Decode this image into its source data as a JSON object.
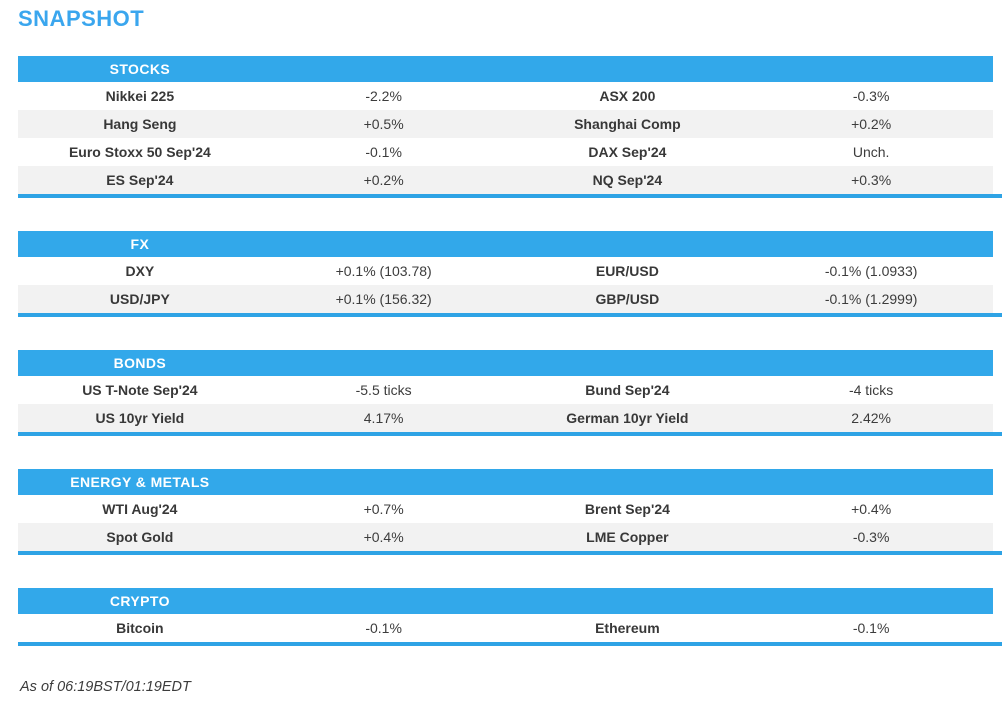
{
  "page": {
    "title": "SNAPSHOT",
    "footer": "As of 06:19BST/01:19EDT"
  },
  "colors": {
    "accent_blue": "#32a8ea",
    "section_border_blue": "#2ea3e5",
    "title_blue": "#3aa6ee",
    "row_alt_gray": "#f2f2f2",
    "text": "#3c3c3c",
    "header_text": "#ffffff"
  },
  "sections": [
    {
      "header": "STOCKS",
      "rows": [
        {
          "instrument_left": "Nikkei 225",
          "change_left": "-2.2%",
          "instrument_right": "ASX 200",
          "change_right": "-0.3%"
        },
        {
          "instrument_left": "Hang Seng",
          "change_left": "+0.5%",
          "instrument_right": "Shanghai Comp",
          "change_right": "+0.2%"
        },
        {
          "instrument_left": "Euro Stoxx 50 Sep'24",
          "change_left": "-0.1%",
          "instrument_right": "DAX Sep'24",
          "change_right": "Unch."
        },
        {
          "instrument_left": "ES Sep'24",
          "change_left": "+0.2%",
          "instrument_right": "NQ Sep'24",
          "change_right": "+0.3%"
        }
      ]
    },
    {
      "header": "FX",
      "rows": [
        {
          "instrument_left": "DXY",
          "change_left": "+0.1% (103.78)",
          "instrument_right": "EUR/USD",
          "change_right": "-0.1% (1.0933)"
        },
        {
          "instrument_left": "USD/JPY",
          "change_left": "+0.1% (156.32)",
          "instrument_right": "GBP/USD",
          "change_right": "-0.1% (1.2999)"
        }
      ]
    },
    {
      "header": "BONDS",
      "rows": [
        {
          "instrument_left": "US T-Note Sep'24",
          "change_left": "-5.5 ticks",
          "instrument_right": "Bund Sep'24",
          "change_right": "-4 ticks"
        },
        {
          "instrument_left": "US 10yr Yield",
          "change_left": "4.17%",
          "instrument_right": "German 10yr Yield",
          "change_right": "2.42%"
        }
      ]
    },
    {
      "header": "ENERGY & METALS",
      "rows": [
        {
          "instrument_left": "WTI Aug'24",
          "change_left": "+0.7%",
          "instrument_right": "Brent Sep'24",
          "change_right": "+0.4%"
        },
        {
          "instrument_left": "Spot Gold",
          "change_left": "+0.4%",
          "instrument_right": "LME Copper",
          "change_right": "-0.3%"
        }
      ]
    },
    {
      "header": "CRYPTO",
      "rows": [
        {
          "instrument_left": "Bitcoin",
          "change_left": "-0.1%",
          "instrument_right": "Ethereum",
          "change_right": "-0.1%"
        }
      ]
    }
  ]
}
